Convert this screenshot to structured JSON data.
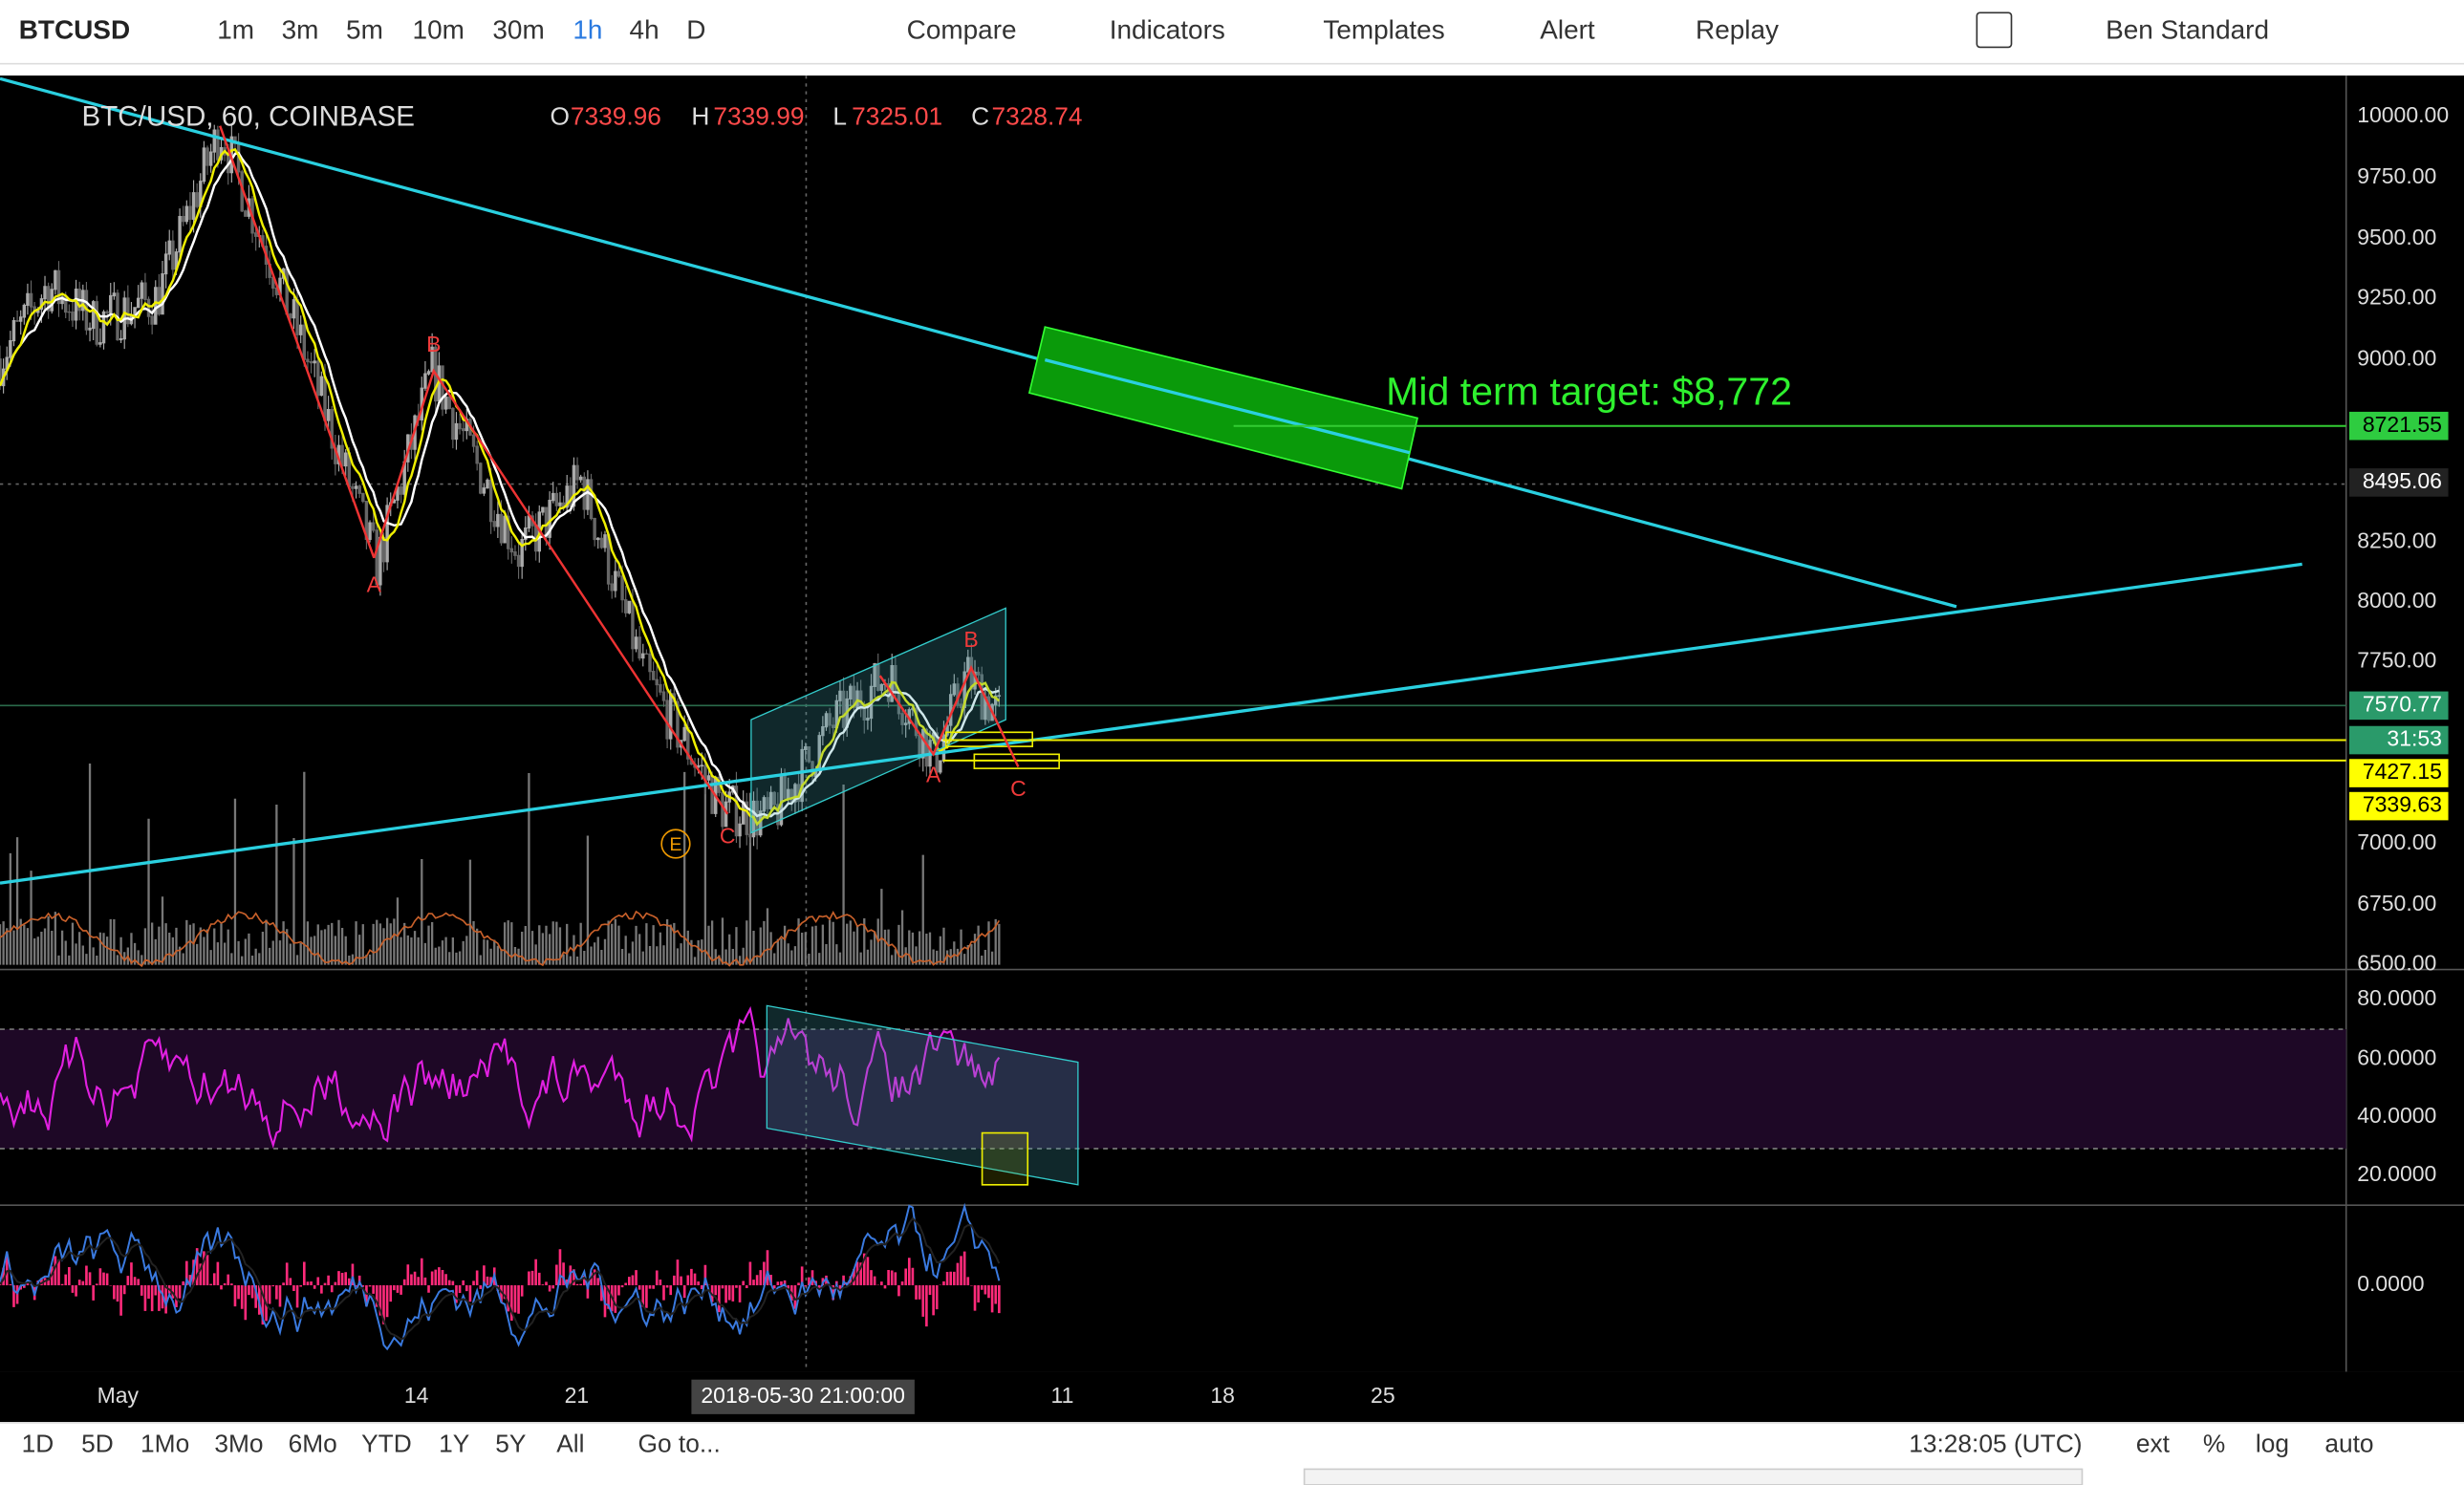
{
  "toolbar": {
    "symbol": "BTCUSD",
    "intervals": [
      "1m",
      "3m",
      "5m",
      "10m",
      "30m",
      "1h",
      "4h",
      "D"
    ],
    "buttons": [
      "Compare",
      "Indicators",
      "Templates",
      "Alert",
      "Replay"
    ],
    "layout_name": "Ben Standard"
  },
  "legend": {
    "title": "BTC/USD, 60, COINBASE",
    "open_label": "O",
    "open": "7339.96",
    "high_label": "H",
    "high": "7339.99",
    "low_label": "L",
    "low": "7325.01",
    "close_label": "C",
    "close": "7328.74"
  },
  "annotations": {
    "target": "Mid term target: $8,772",
    "waves": [
      "A",
      "B",
      "C",
      "A",
      "B",
      "C"
    ],
    "e_label": "E"
  },
  "price_axis": {
    "labels": [
      "10000.00",
      "9750.00",
      "9500.00",
      "9250.00",
      "9000.00",
      "8250.00",
      "8000.00",
      "7750.00",
      "7000.00",
      "6750.00",
      "6500.00"
    ],
    "tags": [
      "8721.55",
      "8495.06",
      "7570.77",
      "31:53",
      "7427.15",
      "7339.63"
    ]
  },
  "rsi_axis": {
    "labels": [
      "80.0000",
      "60.0000",
      "40.0000",
      "20.0000"
    ]
  },
  "macd_axis": {
    "labels": [
      "0.0000"
    ]
  },
  "time_axis": {
    "labels": [
      "May",
      "14",
      "21",
      "11",
      "18",
      "25"
    ],
    "crosshair": "2018-05-30 21:00:00"
  },
  "bottom_bar": {
    "ranges": [
      "1D",
      "5D",
      "1Mo",
      "3Mo",
      "6Mo",
      "YTD",
      "1Y",
      "5Y",
      "All"
    ],
    "goto": "Go to...",
    "clock": "13:28:05 (UTC)",
    "options": [
      "ext",
      "%",
      "log",
      "auto"
    ]
  }
}
